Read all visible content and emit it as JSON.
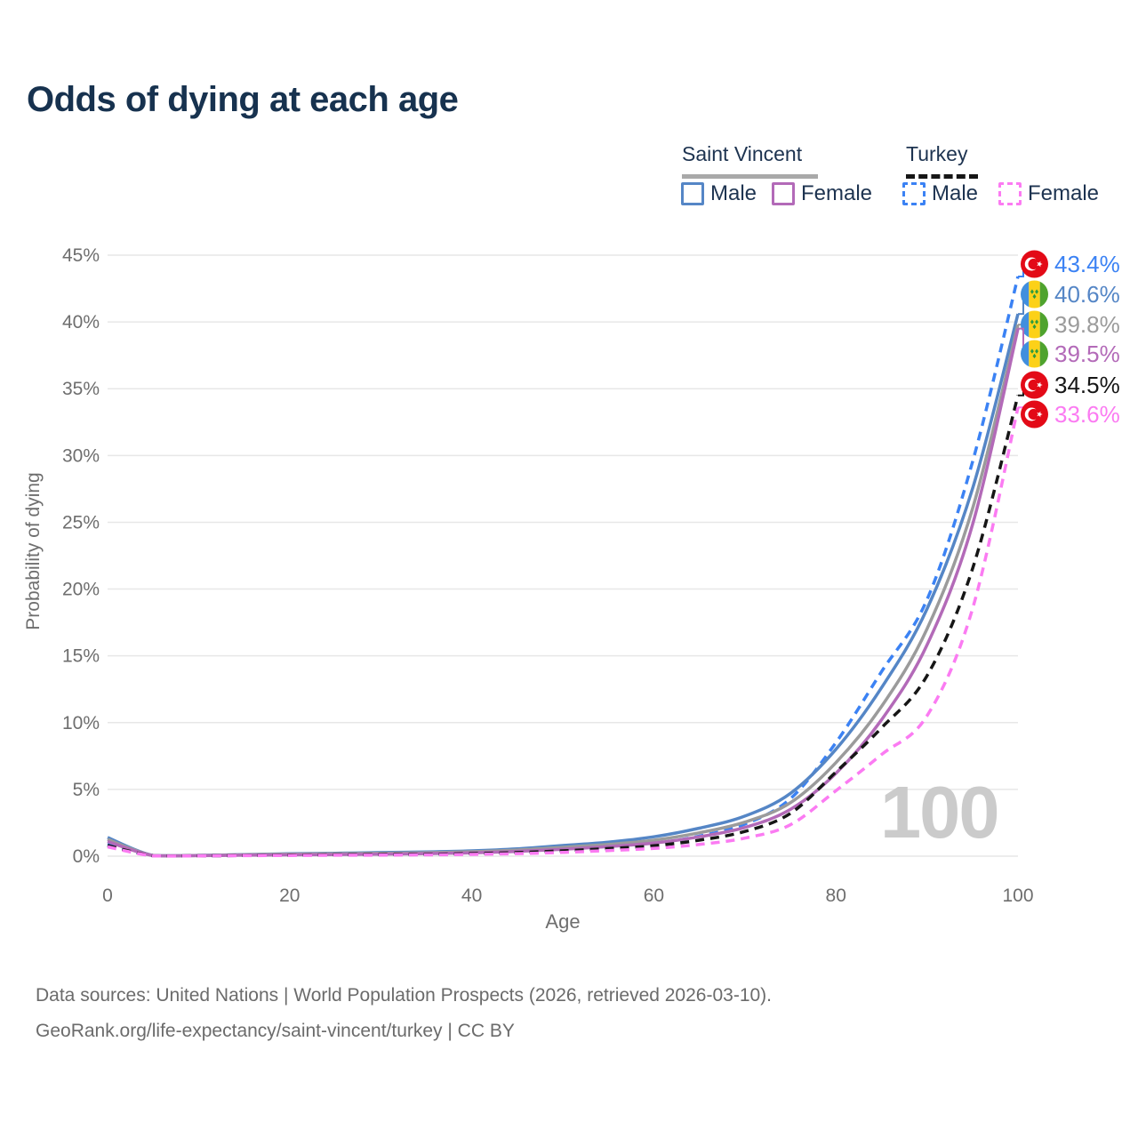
{
  "title": "Odds of dying at each age",
  "legend": {
    "groups": [
      {
        "name": "Saint Vincent",
        "line_style": "solid",
        "line_color": "#A9A9A9"
      },
      {
        "name": "Turkey",
        "line_style": "dashed",
        "line_color": "#161616"
      }
    ],
    "items": [
      {
        "group": "Saint Vincent",
        "label": "Male",
        "color": "#5586C6",
        "dashed": false
      },
      {
        "group": "Saint Vincent",
        "label": "Female",
        "color": "#B36AB8",
        "dashed": false
      },
      {
        "group": "Turkey",
        "label": "Male",
        "color": "#3B82F4",
        "dashed": true
      },
      {
        "group": "Turkey",
        "label": "Female",
        "color": "#FB7BF2",
        "dashed": true
      }
    ]
  },
  "chart_data": {
    "type": "line",
    "title": "Odds of dying at each age",
    "xlabel": "Age",
    "ylabel": "Probability of dying",
    "xlim": [
      0,
      100
    ],
    "ylim_pct": [
      0,
      45
    ],
    "x_ticks": [
      0,
      20,
      40,
      60,
      80,
      100
    ],
    "y_tick_labels": [
      "0%",
      "5%",
      "10%",
      "15%",
      "20%",
      "25%",
      "30%",
      "35%",
      "40%",
      "45%"
    ],
    "grid": "horizontal-only",
    "legend_position": "top-right",
    "watermark": "100",
    "ages": [
      0,
      5,
      10,
      15,
      20,
      25,
      30,
      35,
      40,
      45,
      50,
      55,
      60,
      65,
      70,
      75,
      80,
      85,
      90,
      95,
      100
    ],
    "series": [
      {
        "name": "Turkey Male",
        "flag": "turkey",
        "style": "dashed",
        "color": "#3B82F4",
        "end_label": "43.4%",
        "end_value": 43.4,
        "values": [
          0.9,
          0.03,
          0.03,
          0.06,
          0.1,
          0.12,
          0.14,
          0.17,
          0.23,
          0.33,
          0.5,
          0.7,
          0.95,
          1.5,
          2.4,
          4.3,
          8.5,
          13.8,
          19.2,
          29.5,
          43.4
        ]
      },
      {
        "name": "Saint Vincent Male",
        "flag": "saint-vincent",
        "style": "solid",
        "color": "#5586C6",
        "end_label": "40.6%",
        "end_value": 40.6,
        "values": [
          1.4,
          0.05,
          0.06,
          0.12,
          0.18,
          0.22,
          0.27,
          0.32,
          0.4,
          0.55,
          0.8,
          1.05,
          1.45,
          2.1,
          3.0,
          4.7,
          8.0,
          12.6,
          18.5,
          27.5,
          40.6
        ]
      },
      {
        "name": "Saint Vincent Both sexes",
        "flag": "saint-vincent",
        "style": "solid",
        "color": "#9B9B9B",
        "end_label": "39.8%",
        "end_value": 39.8,
        "values": [
          1.25,
          0.045,
          0.05,
          0.1,
          0.15,
          0.18,
          0.22,
          0.26,
          0.33,
          0.46,
          0.66,
          0.88,
          1.2,
          1.75,
          2.55,
          4.0,
          7.0,
          11.2,
          17.0,
          26.0,
          39.8
        ]
      },
      {
        "name": "Saint Vincent Female",
        "flag": "saint-vincent",
        "style": "solid",
        "color": "#B36AB8",
        "end_label": "39.5%",
        "end_value": 39.5,
        "values": [
          1.1,
          0.04,
          0.04,
          0.07,
          0.1,
          0.12,
          0.15,
          0.19,
          0.25,
          0.36,
          0.52,
          0.72,
          0.98,
          1.45,
          2.15,
          3.5,
          6.2,
          10.2,
          15.8,
          24.8,
          39.5
        ]
      },
      {
        "name": "Turkey Both sexes",
        "flag": "turkey",
        "style": "dashed",
        "color": "#161616",
        "end_label": "34.5%",
        "end_value": 34.5,
        "values": [
          0.8,
          0.025,
          0.025,
          0.05,
          0.08,
          0.1,
          0.12,
          0.14,
          0.19,
          0.27,
          0.4,
          0.57,
          0.78,
          1.2,
          1.85,
          3.2,
          6.3,
          9.6,
          13.5,
          21.5,
          34.5
        ]
      },
      {
        "name": "Turkey Female",
        "flag": "turkey",
        "style": "dashed",
        "color": "#FB7BF2",
        "end_label": "33.6%",
        "end_value": 33.6,
        "values": [
          0.7,
          0.02,
          0.02,
          0.04,
          0.05,
          0.07,
          0.08,
          0.1,
          0.13,
          0.19,
          0.28,
          0.42,
          0.58,
          0.88,
          1.35,
          2.35,
          4.9,
          7.6,
          10.5,
          18.5,
          33.6
        ]
      }
    ]
  },
  "watermark": "100",
  "footer": {
    "line1": "Data sources: United Nations | World Population Prospects (2026, retrieved 2026-03-10).",
    "line2": "GeoRank.org/life-expectancy/saint-vincent/turkey | CC BY"
  },
  "colors": {
    "title": "#17324F",
    "axis_text": "#6E6E6E",
    "gridline": "#E7E7E7",
    "watermark": "#CBCBCB",
    "turkey_flag_red": "#E30A17",
    "sv_flag_blue": "#418FDE",
    "sv_flag_yellow": "#FCD118",
    "sv_flag_green": "#4FA32E"
  }
}
